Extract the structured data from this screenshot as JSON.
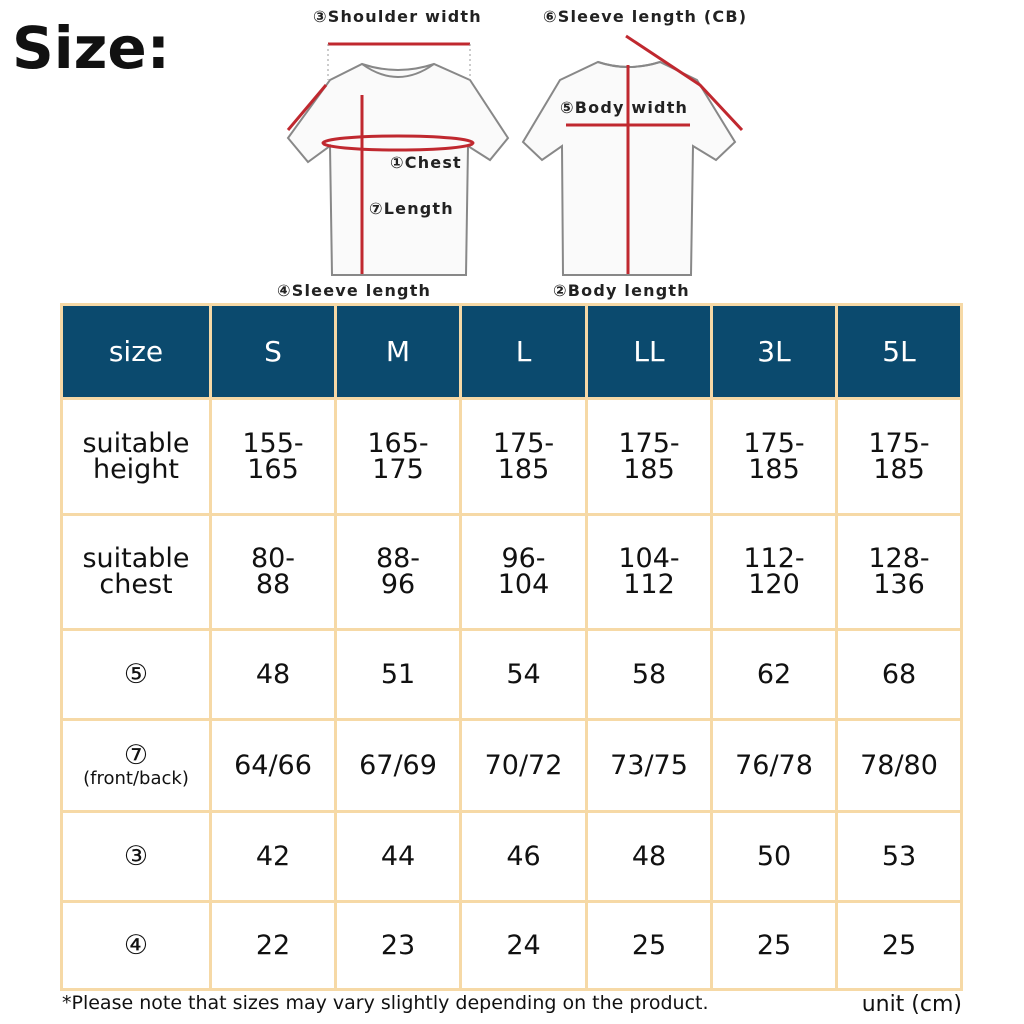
{
  "title": "Size:",
  "diagram": {
    "labels": [
      "③Shoulder width",
      "⑥Sleeve length (CB)",
      "⑤Body width",
      "①Chest",
      "⑦Length",
      "④Sleeve length",
      "②Body length"
    ]
  },
  "table": {
    "header": [
      "size",
      "S",
      "M",
      "L",
      "LL",
      "3L",
      "5L"
    ],
    "rows": [
      {
        "label": "suitable\nheight",
        "values": [
          "155-\n165",
          "165-\n175",
          "175-\n185",
          "175-\n185",
          "175-\n185",
          "175-\n185"
        ]
      },
      {
        "label": "suitable\nchest",
        "values": [
          "80-\n88",
          "88-\n96",
          "96-\n104",
          "104-\n112",
          "112-\n120",
          "128-\n136"
        ]
      },
      {
        "label": "⑤",
        "values": [
          "48",
          "51",
          "54",
          "58",
          "62",
          "68"
        ]
      },
      {
        "label": "⑦",
        "note": "(front/back)",
        "values": [
          "64/66",
          "67/69",
          "70/72",
          "73/75",
          "76/78",
          "78/80"
        ]
      },
      {
        "label": "③",
        "values": [
          "42",
          "44",
          "46",
          "48",
          "50",
          "53"
        ]
      },
      {
        "label": "④",
        "values": [
          "22",
          "23",
          "24",
          "25",
          "25",
          "25"
        ]
      }
    ]
  },
  "footnote": "*Please note that sizes may vary slightly depending on the product.",
  "unit": "unit (cm)"
}
